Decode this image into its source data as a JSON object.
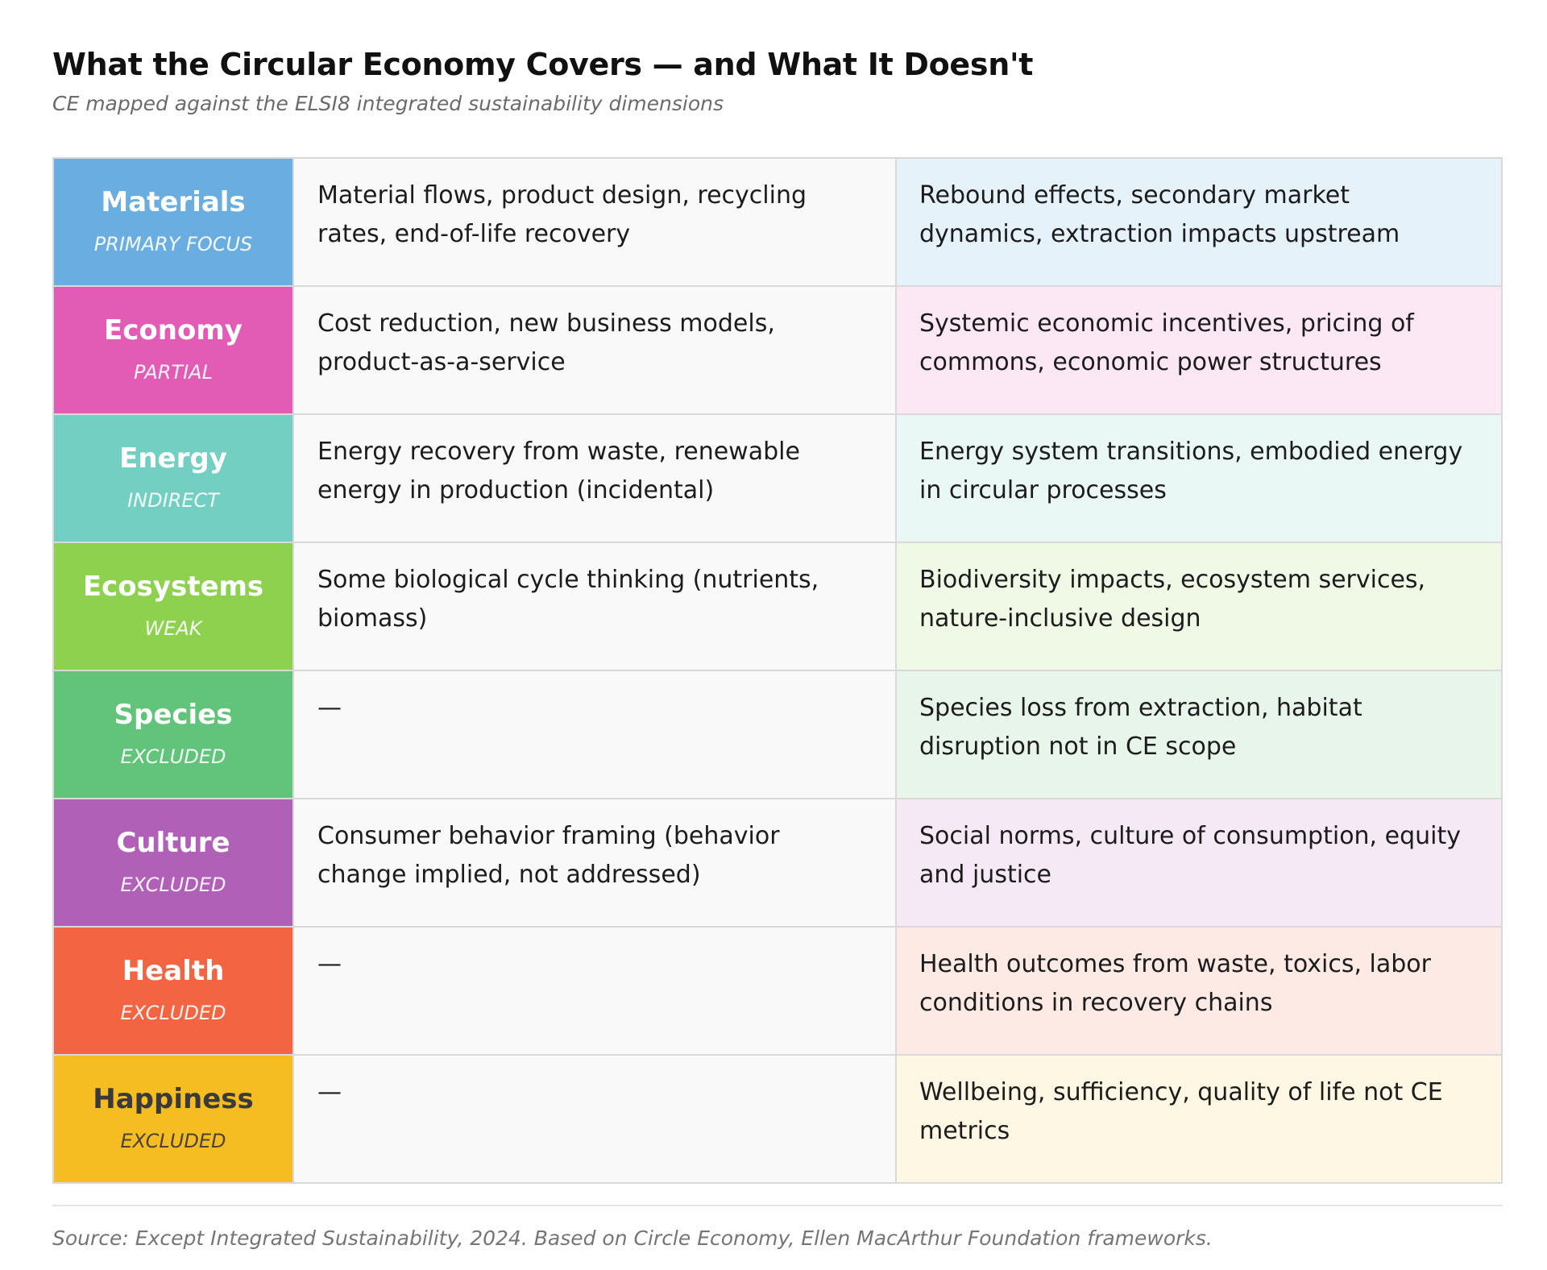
{
  "header": {
    "title": "What the Circular Economy Covers — and What It Doesn't",
    "subtitle": "CE mapped against the ELSI8 integrated sustainability dimensions"
  },
  "rows": [
    {
      "dimension": "Materials",
      "status": "PRIMARY FOCUS",
      "covers": "Material flows, product design, recycling rates, end-of-life recovery",
      "gaps": "Rebound effects, secondary market dynamics, extraction impacts upstream",
      "color": "#6aade0",
      "tint": "#e6f2fa",
      "text_color": "#ffffff"
    },
    {
      "dimension": "Economy",
      "status": "PARTIAL",
      "covers": "Cost reduction, new business models, product-as-a-service",
      "gaps": "Systemic economic incentives, pricing of commons, economic power structures",
      "color": "#e25bb5",
      "tint": "#fce8f5",
      "text_color": "#ffffff"
    },
    {
      "dimension": "Energy",
      "status": "INDIRECT",
      "covers": "Energy recovery from waste, renewable energy in production (incidental)",
      "gaps": "Energy system transitions, embodied energy in circular processes",
      "color": "#72cfc2",
      "tint": "#e9f7f5",
      "text_color": "#ffffff"
    },
    {
      "dimension": "Ecosystems",
      "status": "WEAK",
      "covers": "Some biological cycle thinking (nutrients, biomass)",
      "gaps": "Biodiversity impacts, ecosystem services, nature-inclusive design",
      "color": "#8dd14e",
      "tint": "#f0f8e6",
      "text_color": "#ffffff"
    },
    {
      "dimension": "Species",
      "status": "EXCLUDED",
      "covers": "—",
      "gaps": "Species loss from extraction, habitat disruption not in CE scope",
      "color": "#62c37a",
      "tint": "#e8f5eb",
      "text_color": "#ffffff"
    },
    {
      "dimension": "Culture",
      "status": "EXCLUDED",
      "covers": "Consumer behavior framing (behavior change implied, not addressed)",
      "gaps": "Social norms, culture of consumption, equity and justice",
      "color": "#b060b6",
      "tint": "#f4e9f5",
      "text_color": "#ffffff"
    },
    {
      "dimension": "Health",
      "status": "EXCLUDED",
      "covers": "—",
      "gaps": "Health outcomes from waste, toxics, labor conditions in recovery chains",
      "color": "#f26442",
      "tint": "#fdeae5",
      "text_color": "#ffffff"
    },
    {
      "dimension": "Happiness",
      "status": "EXCLUDED",
      "covers": "—",
      "gaps": "Wellbeing, sufficiency, quality of life not CE metrics",
      "color": "#f5bd22",
      "tint": "#fef7e3",
      "text_color": "#3a3a3a"
    }
  ],
  "footer": {
    "source": "Source: Except Integrated Sustainability, 2024. Based on Circle Economy, Ellen MacArthur Foundation frameworks."
  }
}
